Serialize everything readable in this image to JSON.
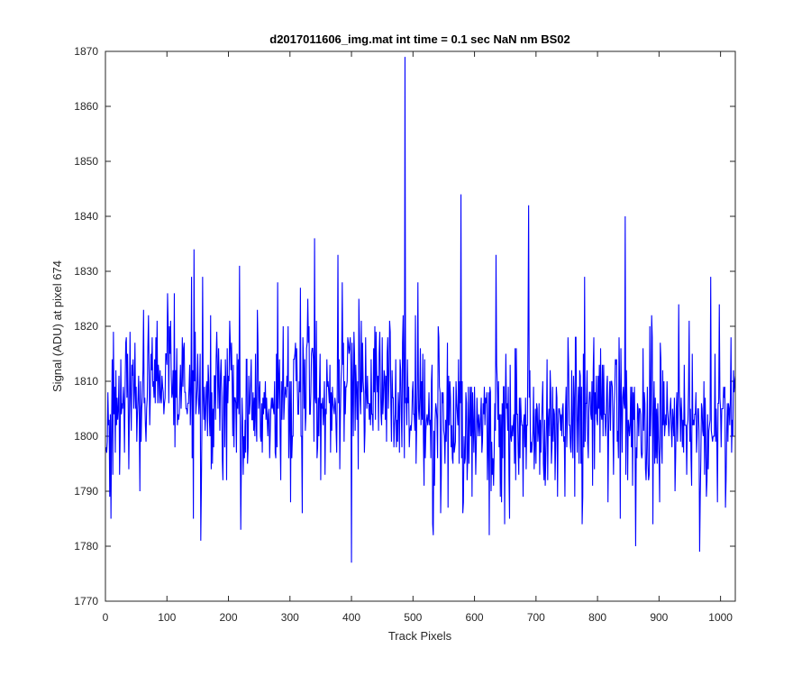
{
  "chart_data": {
    "type": "line",
    "title": "d2017011606_img.mat int time = 0.1 sec  NaN nm BS02",
    "xlabel": "Track Pixels",
    "ylabel": "Signal (ADU) at pixel 674",
    "xlim": [
      0,
      1024
    ],
    "ylim": [
      1770,
      1870
    ],
    "xticks": [
      "0",
      "100",
      "200",
      "300",
      "400",
      "500",
      "600",
      "700",
      "800",
      "900",
      "1000"
    ],
    "yticks": [
      "1770",
      "1780",
      "1790",
      "1800",
      "1810",
      "1820",
      "1830",
      "1840",
      "1850",
      "1860",
      "1870"
    ],
    "grid": false,
    "series": [
      {
        "color": "#0000ff",
        "x_start": 1,
        "x_step": 1,
        "n_points": 1024,
        "baseline": 1805,
        "noise_std": 7,
        "noise_seed": 674,
        "prominent_points": [
          {
            "x": 9,
            "y": 1785
          },
          {
            "x": 34,
            "y": 1818
          },
          {
            "x": 62,
            "y": 1823
          },
          {
            "x": 140,
            "y": 1829
          },
          {
            "x": 143,
            "y": 1785
          },
          {
            "x": 155,
            "y": 1781
          },
          {
            "x": 218,
            "y": 1831
          },
          {
            "x": 220,
            "y": 1783
          },
          {
            "x": 280,
            "y": 1828
          },
          {
            "x": 340,
            "y": 1836
          },
          {
            "x": 378,
            "y": 1833
          },
          {
            "x": 400,
            "y": 1777
          },
          {
            "x": 487,
            "y": 1869
          },
          {
            "x": 533,
            "y": 1782
          },
          {
            "x": 578,
            "y": 1844
          },
          {
            "x": 635,
            "y": 1833
          },
          {
            "x": 688,
            "y": 1842
          },
          {
            "x": 775,
            "y": 1784
          },
          {
            "x": 845,
            "y": 1840
          },
          {
            "x": 862,
            "y": 1780
          },
          {
            "x": 966,
            "y": 1779
          },
          {
            "x": 984,
            "y": 1829
          }
        ]
      }
    ]
  }
}
